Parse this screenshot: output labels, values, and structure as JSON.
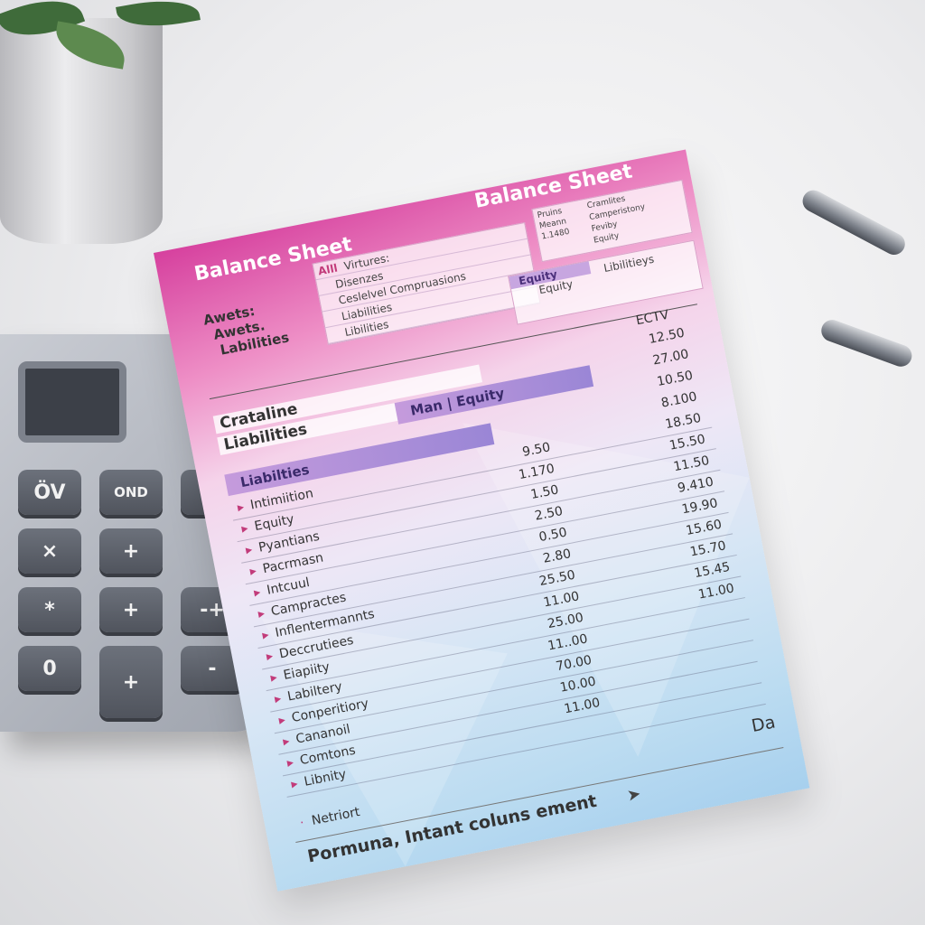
{
  "document": {
    "title_left": "Balance Sheet",
    "title_right": "Balance Sheet",
    "side_labels": [
      "Awets:",
      "Awets.",
      "Labilities"
    ],
    "top_box": {
      "marker": "Alll",
      "rows": [
        "Virtures:",
        "Disenzes",
        "Ceslelvel Compruasions",
        "Liabilities",
        "Libilities"
      ]
    },
    "right_box": {
      "col1": [
        "Pruins",
        "Meann",
        "1.1480"
      ],
      "col2": [
        "Cramlites",
        "Camperistony",
        "Feviby",
        "Equity"
      ]
    },
    "equity_box": {
      "header": "Equity",
      "sub": "Equity",
      "col2": "Libilitieys"
    },
    "section_labels": [
      "Crataline",
      "Liabilities"
    ],
    "col_headers": {
      "man": "Man",
      "equity": "Equity",
      "ectv": "ECTV"
    },
    "band_label": "Liabilties",
    "rows": [
      {
        "label": "Intimiition",
        "value": "9.50"
      },
      {
        "label": "Equity",
        "value": "1.170"
      },
      {
        "label": "Pyantians",
        "value": "1.50"
      },
      {
        "label": "Pacrmasn",
        "value": "2.50"
      },
      {
        "label": "Intcuul",
        "value": "0.50"
      },
      {
        "label": "Campractes",
        "value": "2.80"
      },
      {
        "label": "Inflentermannts",
        "value": "25.50"
      },
      {
        "label": "Deccrutiees",
        "value": "11.00"
      },
      {
        "label": "Eiapiity",
        "value": "25.00"
      },
      {
        "label": "Labiltery",
        "value": "11..00"
      },
      {
        "label": "Conperitiory",
        "value": "70.00"
      },
      {
        "label": "Cananoil",
        "value": "10.00"
      },
      {
        "label": "Comtons",
        "value": "11.00"
      },
      {
        "label": "Libnity",
        "value": ""
      }
    ],
    "ectv_values": [
      "12.50",
      "27.00",
      "10.50",
      "8.100",
      "18.50",
      "15.50",
      "11.50",
      "9.410",
      "19.90",
      "15.60",
      "15.70",
      "15.45",
      "11.00"
    ],
    "footer_item": "Netriort",
    "footer_text": "Pormuna, Intant coluns ement",
    "footer_right": "Da"
  },
  "calculator": {
    "keys": [
      "ÖV",
      "OND",
      "×",
      "+",
      "*",
      "+",
      "-+",
      "+",
      "-",
      "0",
      "↑"
    ]
  },
  "colors": {
    "header_pink": "#d6409e",
    "band_purple": "#9a86d6",
    "paper_blue": "#a7d0ee"
  }
}
